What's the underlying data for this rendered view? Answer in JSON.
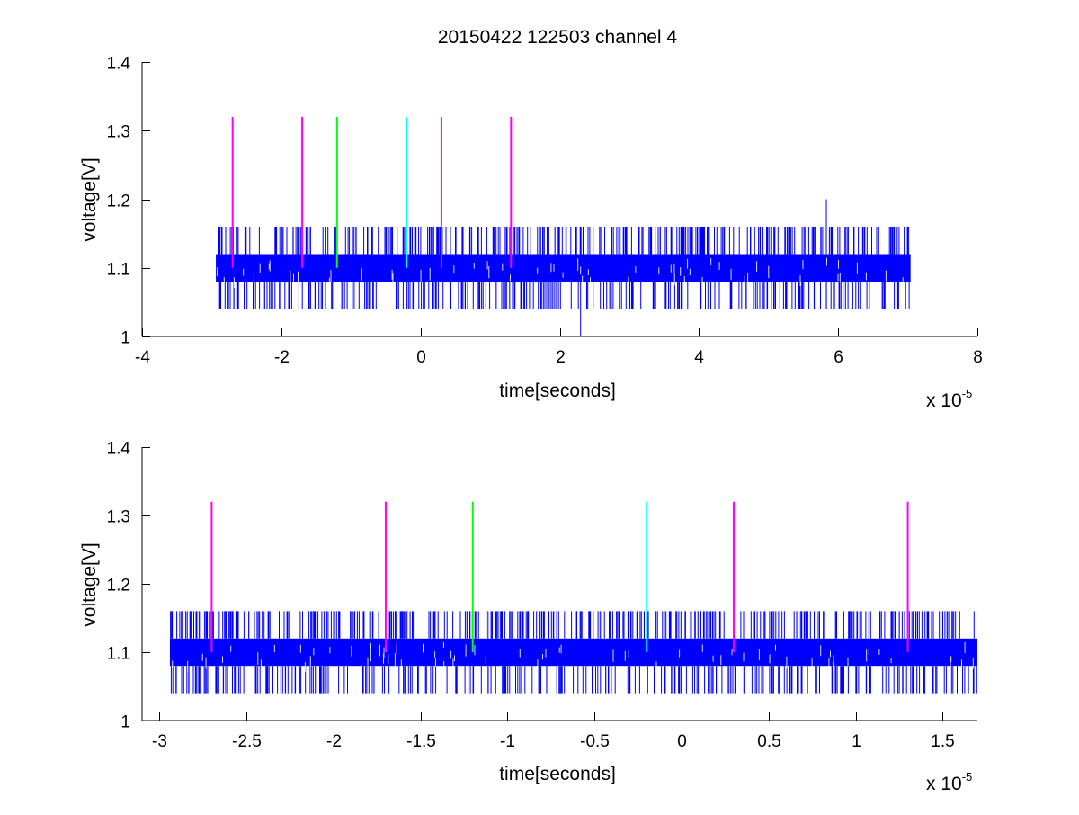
{
  "figure": {
    "title": "20150422 122503 channel 4",
    "colors": {
      "signal": "#0000ff",
      "magenta": "#ff00ff",
      "green": "#00ff00",
      "cyan": "#00ffff",
      "axes": "#000000",
      "background": "#ffffff"
    }
  },
  "chart_data": [
    {
      "type": "line",
      "title": "20150422 122503 channel 4",
      "xlabel": "time[seconds]",
      "ylabel": "voltage[V]",
      "x_multiplier": {
        "base": "x 10",
        "exponent": "-5"
      },
      "xlim": [
        -4,
        8
      ],
      "ylim": [
        1,
        1.4
      ],
      "x_ticks": [
        -4,
        -2,
        0,
        2,
        4,
        6,
        8
      ],
      "x_tick_labels": [
        "-4",
        "-2",
        "0",
        "2",
        "4",
        "6",
        "8"
      ],
      "y_ticks": [
        1,
        1.1,
        1.2,
        1.3,
        1.4
      ],
      "y_tick_labels": [
        "1",
        "1.1",
        "1.2",
        "1.3",
        "1.4"
      ],
      "grid": false,
      "series": [
        {
          "kind": "signal",
          "color": "#0000ff",
          "x_range": [
            -2.94,
            7.04
          ],
          "band": [
            1.08,
            1.12
          ],
          "high_level": 1.16,
          "low_level": 1.04,
          "max_spike": {
            "x": 5.83,
            "y": 1.2
          },
          "min_spike": {
            "x": 2.3,
            "y": 1.0
          }
        }
      ],
      "markers": [
        {
          "x": -2.7,
          "y0": 1.1,
          "y1": 1.32,
          "color": "#ff00ff"
        },
        {
          "x": -1.7,
          "y0": 1.1,
          "y1": 1.32,
          "color": "#ff00ff"
        },
        {
          "x": -1.2,
          "y0": 1.1,
          "y1": 1.32,
          "color": "#00ff00"
        },
        {
          "x": -0.2,
          "y0": 1.1,
          "y1": 1.32,
          "color": "#00ffff"
        },
        {
          "x": 0.3,
          "y0": 1.1,
          "y1": 1.32,
          "color": "#ff00ff"
        },
        {
          "x": 1.3,
          "y0": 1.1,
          "y1": 1.32,
          "color": "#ff00ff"
        }
      ]
    },
    {
      "type": "line",
      "title": "",
      "xlabel": "time[seconds]",
      "ylabel": "voltage[V]",
      "x_multiplier": {
        "base": "x 10",
        "exponent": "-5"
      },
      "xlim": [
        -3.1,
        1.7
      ],
      "ylim": [
        1,
        1.4
      ],
      "x_ticks": [
        -3,
        -2.5,
        -2,
        -1.5,
        -1,
        -0.5,
        0,
        0.5,
        1,
        1.5
      ],
      "x_tick_labels": [
        "-3",
        "-2.5",
        "-2",
        "-1.5",
        "-1",
        "-0.5",
        "0",
        "0.5",
        "1",
        "1.5"
      ],
      "y_ticks": [
        1,
        1.1,
        1.2,
        1.3,
        1.4
      ],
      "y_tick_labels": [
        "1",
        "1.1",
        "1.2",
        "1.3",
        "1.4"
      ],
      "grid": false,
      "series": [
        {
          "kind": "signal",
          "color": "#0000ff",
          "x_range": [
            -2.94,
            1.7
          ],
          "band": [
            1.08,
            1.12
          ],
          "high_level": 1.16,
          "low_level": 1.04
        }
      ],
      "markers": [
        {
          "x": -2.7,
          "y0": 1.1,
          "y1": 1.32,
          "color": "#ff00ff"
        },
        {
          "x": -1.7,
          "y0": 1.1,
          "y1": 1.32,
          "color": "#ff00ff"
        },
        {
          "x": -1.2,
          "y0": 1.1,
          "y1": 1.32,
          "color": "#00ff00"
        },
        {
          "x": -0.2,
          "y0": 1.1,
          "y1": 1.32,
          "color": "#00ffff"
        },
        {
          "x": 0.3,
          "y0": 1.1,
          "y1": 1.32,
          "color": "#ff00ff"
        },
        {
          "x": 1.3,
          "y0": 1.1,
          "y1": 1.32,
          "color": "#ff00ff"
        }
      ]
    }
  ]
}
